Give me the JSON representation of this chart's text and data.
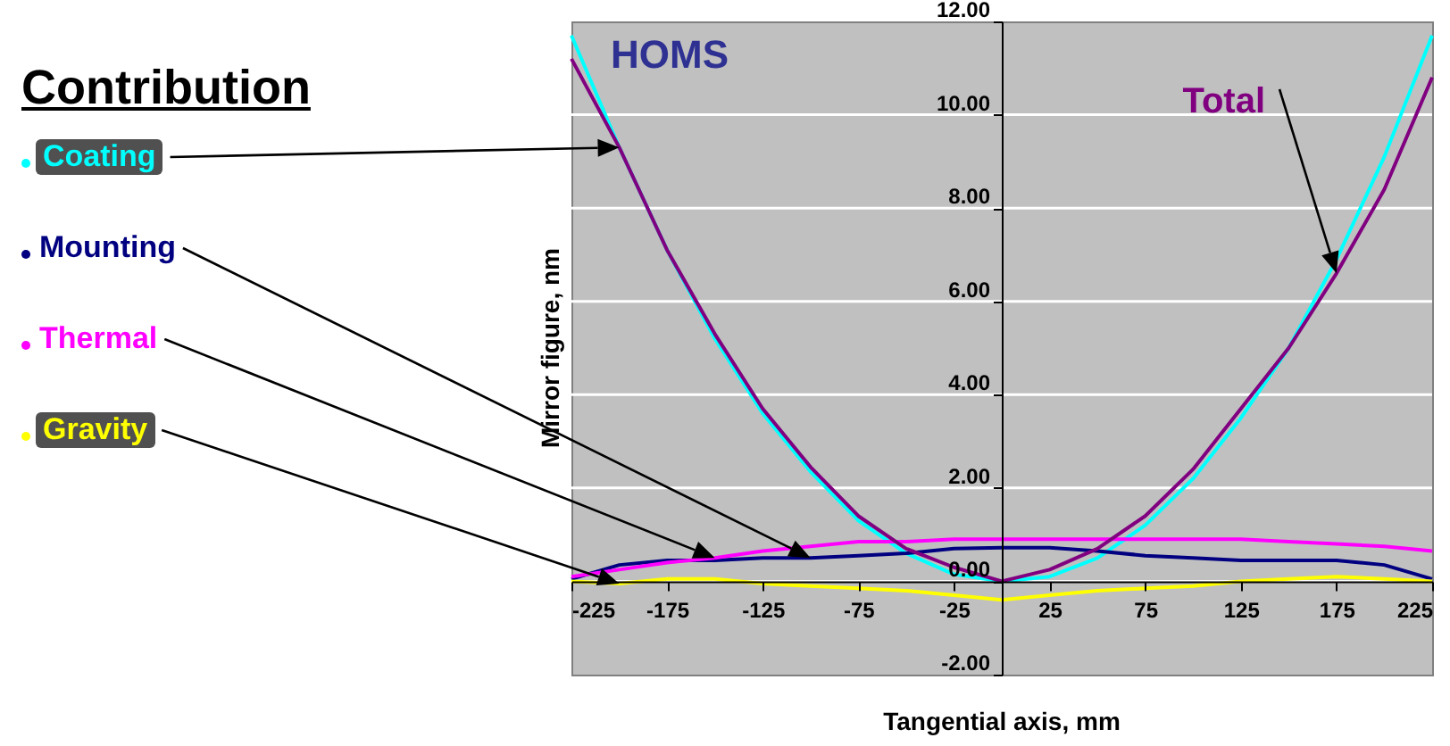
{
  "chart_data": {
    "type": "line",
    "title": "HOMS",
    "xlabel": "Tangential axis, mm",
    "ylabel": "Mirror figure, nm",
    "legend_title": "Contribution",
    "legend": "left",
    "grid": "y",
    "marker": "none",
    "line_style": "solid",
    "x": [
      -225,
      -200,
      -175,
      -150,
      -125,
      -100,
      -75,
      -50,
      -25,
      0,
      25,
      50,
      75,
      100,
      125,
      150,
      175,
      200,
      225
    ],
    "series": [
      {
        "name": "Coating",
        "color": "#00ffff",
        "values": [
          11.7,
          9.3,
          7.1,
          5.2,
          3.6,
          2.35,
          1.3,
          0.6,
          0.15,
          0.0,
          0.1,
          0.5,
          1.2,
          2.2,
          3.5,
          5.0,
          6.9,
          9.1,
          11.7
        ]
      },
      {
        "name": "Mounting",
        "color": "#000080",
        "values": [
          0.05,
          0.35,
          0.45,
          0.45,
          0.5,
          0.5,
          0.55,
          0.6,
          0.7,
          0.72,
          0.72,
          0.65,
          0.55,
          0.5,
          0.45,
          0.45,
          0.45,
          0.35,
          0.05
        ]
      },
      {
        "name": "Thermal",
        "color": "#ff00ff",
        "values": [
          0.1,
          0.25,
          0.4,
          0.5,
          0.65,
          0.75,
          0.85,
          0.85,
          0.9,
          0.9,
          0.9,
          0.9,
          0.9,
          0.9,
          0.9,
          0.85,
          0.8,
          0.75,
          0.65
        ]
      },
      {
        "name": "Gravity",
        "color": "#ffff00",
        "values": [
          0.0,
          -0.05,
          0.05,
          0.05,
          -0.05,
          -0.1,
          -0.15,
          -0.2,
          -0.3,
          -0.4,
          -0.3,
          -0.2,
          -0.15,
          -0.1,
          0.0,
          0.05,
          0.1,
          0.05,
          0.0
        ]
      },
      {
        "name": "Total",
        "color": "#800080",
        "values": [
          11.2,
          9.3,
          7.1,
          5.3,
          3.7,
          2.45,
          1.4,
          0.7,
          0.3,
          0.0,
          0.25,
          0.7,
          1.4,
          2.4,
          3.7,
          5.0,
          6.6,
          8.4,
          10.8
        ]
      }
    ],
    "xlim": [
      -225,
      225
    ],
    "xticks": [
      -225,
      -175,
      -125,
      -75,
      -25,
      25,
      75,
      125,
      175,
      225
    ],
    "ylim": [
      -2,
      12
    ],
    "yticks": [
      {
        "value": -2,
        "label": "-2.00"
      },
      {
        "value": 0,
        "label": "0.00"
      },
      {
        "value": 2,
        "label": "2.00"
      },
      {
        "value": 4,
        "label": "4.00"
      },
      {
        "value": 6,
        "label": "6.00"
      },
      {
        "value": 8,
        "label": "8.00"
      },
      {
        "value": 10,
        "label": "10.00"
      },
      {
        "value": 12,
        "label": "12.00"
      }
    ]
  }
}
